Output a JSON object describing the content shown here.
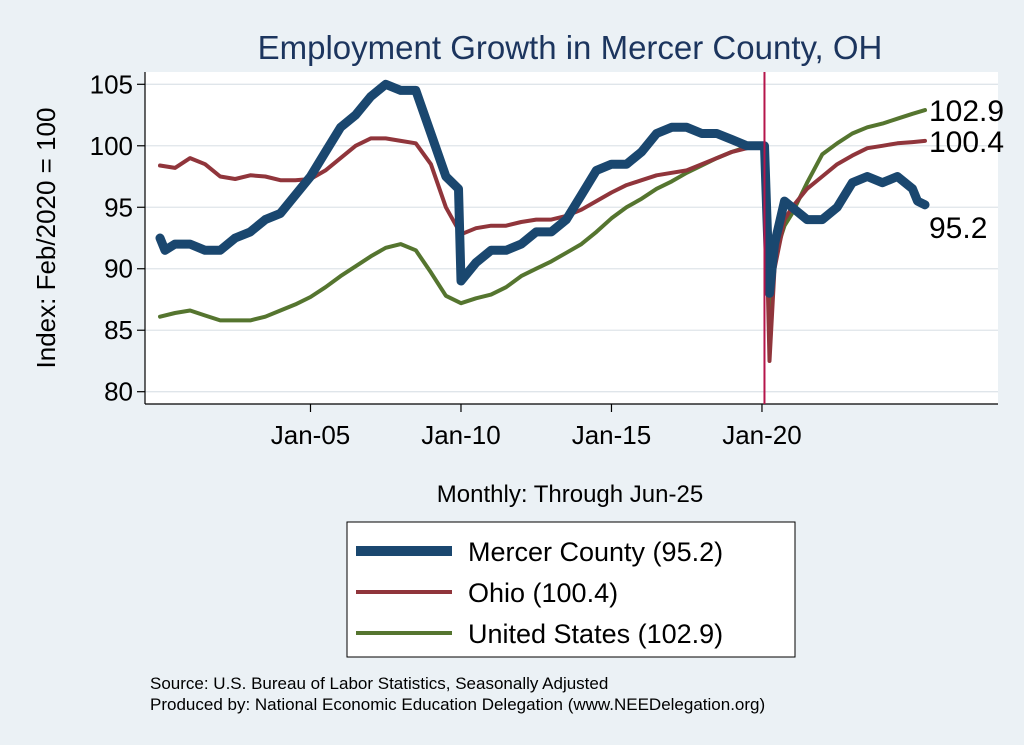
{
  "chart_data": {
    "type": "line",
    "title": "Employment Growth in Mercer  County, OH",
    "xlabel": "Monthly: Through Jun-25",
    "ylabel": "Index: Feb/2020 = 100",
    "x_range": [
      "2000-01",
      "2025-06"
    ],
    "ylim": [
      79,
      106
    ],
    "y_ticks": [
      80,
      85,
      90,
      95,
      100,
      105
    ],
    "x_ticks": [
      {
        "label": "Jan-05",
        "date": "2005-01"
      },
      {
        "label": "Jan-10",
        "date": "2010-01"
      },
      {
        "label": "Jan-15",
        "date": "2015-01"
      },
      {
        "label": "Jan-20",
        "date": "2020-01"
      }
    ],
    "grid": "horizontal",
    "vertical_marker": "2020-02",
    "legend_position": "bottom",
    "series": [
      {
        "name": "Mercer  County (95.2)",
        "color": "#1a476f",
        "end_label": "95.2",
        "points": [
          [
            "2000-01",
            92.5
          ],
          [
            "2000-03",
            91.5
          ],
          [
            "2000-07",
            92.0
          ],
          [
            "2001-01",
            92.0
          ],
          [
            "2001-07",
            91.5
          ],
          [
            "2002-01",
            91.5
          ],
          [
            "2002-07",
            92.5
          ],
          [
            "2003-01",
            93.0
          ],
          [
            "2003-07",
            94.0
          ],
          [
            "2004-01",
            94.5
          ],
          [
            "2004-07",
            96.0
          ],
          [
            "2005-01",
            97.5
          ],
          [
            "2005-07",
            99.5
          ],
          [
            "2006-01",
            101.5
          ],
          [
            "2006-07",
            102.5
          ],
          [
            "2007-01",
            104.0
          ],
          [
            "2007-07",
            105.0
          ],
          [
            "2008-01",
            104.5
          ],
          [
            "2008-07",
            104.5
          ],
          [
            "2009-01",
            101.0
          ],
          [
            "2009-07",
            97.5
          ],
          [
            "2009-12",
            96.5
          ],
          [
            "2010-01",
            89.0
          ],
          [
            "2010-07",
            90.5
          ],
          [
            "2011-01",
            91.5
          ],
          [
            "2011-07",
            91.5
          ],
          [
            "2012-01",
            92.0
          ],
          [
            "2012-07",
            93.0
          ],
          [
            "2013-01",
            93.0
          ],
          [
            "2013-07",
            94.0
          ],
          [
            "2014-01",
            96.0
          ],
          [
            "2014-07",
            98.0
          ],
          [
            "2015-01",
            98.5
          ],
          [
            "2015-07",
            98.5
          ],
          [
            "2016-01",
            99.5
          ],
          [
            "2016-07",
            101.0
          ],
          [
            "2017-01",
            101.5
          ],
          [
            "2017-07",
            101.5
          ],
          [
            "2018-01",
            101.0
          ],
          [
            "2018-07",
            101.0
          ],
          [
            "2019-01",
            100.5
          ],
          [
            "2019-07",
            100.0
          ],
          [
            "2020-02",
            100.0
          ],
          [
            "2020-04",
            88.0
          ],
          [
            "2020-06",
            92.0
          ],
          [
            "2020-10",
            95.5
          ],
          [
            "2021-01",
            95.0
          ],
          [
            "2021-07",
            94.0
          ],
          [
            "2022-01",
            94.0
          ],
          [
            "2022-07",
            95.0
          ],
          [
            "2023-01",
            97.0
          ],
          [
            "2023-07",
            97.5
          ],
          [
            "2024-01",
            97.0
          ],
          [
            "2024-07",
            97.5
          ],
          [
            "2025-01",
            96.5
          ],
          [
            "2025-03",
            95.5
          ],
          [
            "2025-06",
            95.2
          ]
        ]
      },
      {
        "name": "Ohio (100.4)",
        "color": "#90353b",
        "end_label": "100.4",
        "points": [
          [
            "2000-01",
            98.4
          ],
          [
            "2000-07",
            98.2
          ],
          [
            "2001-01",
            99.0
          ],
          [
            "2001-07",
            98.5
          ],
          [
            "2002-01",
            97.5
          ],
          [
            "2002-07",
            97.3
          ],
          [
            "2003-01",
            97.6
          ],
          [
            "2003-07",
            97.5
          ],
          [
            "2004-01",
            97.2
          ],
          [
            "2004-07",
            97.2
          ],
          [
            "2005-01",
            97.3
          ],
          [
            "2005-07",
            98.0
          ],
          [
            "2006-01",
            99.0
          ],
          [
            "2006-07",
            100.0
          ],
          [
            "2007-01",
            100.6
          ],
          [
            "2007-07",
            100.6
          ],
          [
            "2008-01",
            100.4
          ],
          [
            "2008-07",
            100.2
          ],
          [
            "2009-01",
            98.5
          ],
          [
            "2009-07",
            95.0
          ],
          [
            "2010-01",
            92.8
          ],
          [
            "2010-07",
            93.3
          ],
          [
            "2011-01",
            93.5
          ],
          [
            "2011-07",
            93.5
          ],
          [
            "2012-01",
            93.8
          ],
          [
            "2012-07",
            94.0
          ],
          [
            "2013-01",
            94.0
          ],
          [
            "2013-07",
            94.3
          ],
          [
            "2014-01",
            94.8
          ],
          [
            "2014-07",
            95.5
          ],
          [
            "2015-01",
            96.2
          ],
          [
            "2015-07",
            96.8
          ],
          [
            "2016-01",
            97.2
          ],
          [
            "2016-07",
            97.6
          ],
          [
            "2017-01",
            97.8
          ],
          [
            "2017-07",
            98.0
          ],
          [
            "2018-01",
            98.5
          ],
          [
            "2018-07",
            99.0
          ],
          [
            "2019-01",
            99.5
          ],
          [
            "2019-07",
            99.8
          ],
          [
            "2020-02",
            100.0
          ],
          [
            "2020-04",
            82.5
          ],
          [
            "2020-06",
            90.0
          ],
          [
            "2020-10",
            94.0
          ],
          [
            "2021-01",
            95.0
          ],
          [
            "2021-07",
            96.5
          ],
          [
            "2022-01",
            97.5
          ],
          [
            "2022-07",
            98.5
          ],
          [
            "2023-01",
            99.2
          ],
          [
            "2023-07",
            99.8
          ],
          [
            "2024-01",
            100.0
          ],
          [
            "2024-07",
            100.2
          ],
          [
            "2025-01",
            100.3
          ],
          [
            "2025-06",
            100.4
          ]
        ]
      },
      {
        "name": "United States (102.9)",
        "color": "#55752f",
        "end_label": "102.9",
        "points": [
          [
            "2000-01",
            86.1
          ],
          [
            "2000-07",
            86.4
          ],
          [
            "2001-01",
            86.6
          ],
          [
            "2001-07",
            86.2
          ],
          [
            "2002-01",
            85.8
          ],
          [
            "2002-07",
            85.8
          ],
          [
            "2003-01",
            85.8
          ],
          [
            "2003-07",
            86.1
          ],
          [
            "2004-01",
            86.6
          ],
          [
            "2004-07",
            87.1
          ],
          [
            "2005-01",
            87.7
          ],
          [
            "2005-07",
            88.5
          ],
          [
            "2006-01",
            89.4
          ],
          [
            "2006-07",
            90.2
          ],
          [
            "2007-01",
            91.0
          ],
          [
            "2007-07",
            91.7
          ],
          [
            "2008-01",
            92.0
          ],
          [
            "2008-07",
            91.5
          ],
          [
            "2009-01",
            89.7
          ],
          [
            "2009-07",
            87.8
          ],
          [
            "2010-01",
            87.2
          ],
          [
            "2010-07",
            87.6
          ],
          [
            "2011-01",
            87.9
          ],
          [
            "2011-07",
            88.5
          ],
          [
            "2012-01",
            89.4
          ],
          [
            "2012-07",
            90.0
          ],
          [
            "2013-01",
            90.6
          ],
          [
            "2013-07",
            91.3
          ],
          [
            "2014-01",
            92.0
          ],
          [
            "2014-07",
            93.0
          ],
          [
            "2015-01",
            94.1
          ],
          [
            "2015-07",
            95.0
          ],
          [
            "2016-01",
            95.7
          ],
          [
            "2016-07",
            96.5
          ],
          [
            "2017-01",
            97.1
          ],
          [
            "2017-07",
            97.8
          ],
          [
            "2018-01",
            98.4
          ],
          [
            "2018-07",
            99.0
          ],
          [
            "2019-01",
            99.5
          ],
          [
            "2019-07",
            99.9
          ],
          [
            "2020-02",
            100.0
          ],
          [
            "2020-04",
            85.8
          ],
          [
            "2020-06",
            91.0
          ],
          [
            "2020-10",
            93.5
          ],
          [
            "2021-01",
            94.5
          ],
          [
            "2021-07",
            97.0
          ],
          [
            "2022-01",
            99.3
          ],
          [
            "2022-07",
            100.2
          ],
          [
            "2023-01",
            101.0
          ],
          [
            "2023-07",
            101.5
          ],
          [
            "2024-01",
            101.8
          ],
          [
            "2024-07",
            102.2
          ],
          [
            "2025-01",
            102.6
          ],
          [
            "2025-06",
            102.9
          ]
        ]
      }
    ]
  },
  "legend": {
    "items": [
      {
        "label": "Mercer  County (95.2)"
      },
      {
        "label": "Ohio (100.4)"
      },
      {
        "label": "United States (102.9)"
      }
    ]
  },
  "footer": {
    "source": "Source: U.S. Bureau of Labor Statistics, Seasonally Adjusted",
    "produced": "Produced by: National Economic Education Delegation (www.NEEDelegation.org)"
  }
}
